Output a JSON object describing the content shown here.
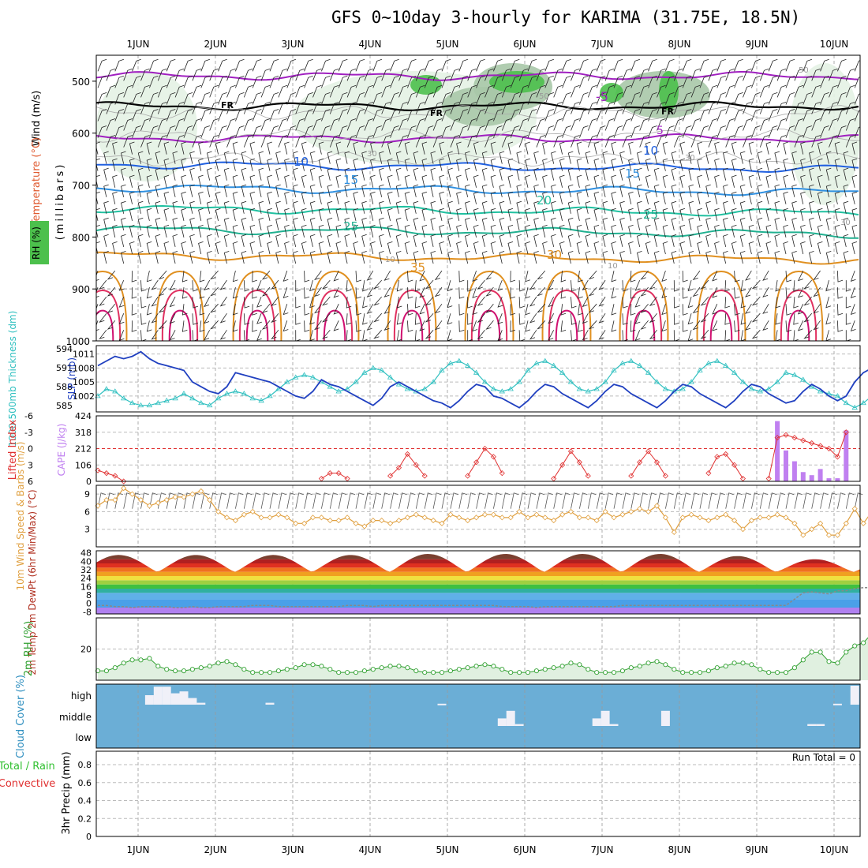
{
  "title": "GFS 0~10day 3-hourly for KARIMA (31.75E, 18.5N)",
  "days": [
    "1JUN",
    "2JUN",
    "3JUN",
    "4JUN",
    "5JUN",
    "6JUN",
    "7JUN",
    "8JUN",
    "9JUN",
    "10JUN"
  ],
  "colors": {
    "temp_cold": "#a020c0",
    "temp_mid": "#2060e0",
    "temp_warm": "#20c0a0",
    "temp_hot": "#e09020",
    "temp_vhot": "#e03060",
    "rh_light": "#e4f2e4",
    "rh_mid": "#a8c8a8",
    "rh_dark": "#4cc04c",
    "slp": "#2040c0",
    "thickness": "#30c0c0",
    "cape": "#c080f0",
    "lifted": "#e03030",
    "wind": "#e0a040",
    "cloud_bg": "#6baed6",
    "cloud_fill": "#f0f0f8",
    "rh2m": "#30a030",
    "precip_total": "#30c030",
    "precip_conv": "#e03030"
  },
  "chart_data": [
    {
      "type": "contour",
      "panel": "upper-air",
      "ylabel_parts": [
        "Wind (m/s)",
        "Temperature (°C)",
        "RH (%)",
        "(millibars)"
      ],
      "yticks": [
        500,
        600,
        700,
        800,
        900,
        1000
      ],
      "ylim": [
        450,
        1000
      ],
      "freezing_label": "FR",
      "temp_contour_labels": [
        "-5",
        "5",
        "10",
        "15",
        "20",
        "25",
        "30",
        "35"
      ],
      "rh_contour_labels": [
        "10",
        "30",
        "50"
      ]
    },
    {
      "type": "line",
      "panel": "slp-thickness",
      "ylabel_left": "1000-500mb Thickness (dm)",
      "ylabel_right": "SLP (mb)",
      "yticks_left": [
        585,
        588,
        591,
        594
      ],
      "yticks_right": [
        1002,
        1005,
        1008,
        1011
      ],
      "ylim_slp": [
        998.6,
        1012.8
      ],
      "series": [
        {
          "name": "SLP",
          "values": [
            1008.5,
            1009.5,
            1010.5,
            1010,
            1010.5,
            1011.5,
            1010,
            1009,
            1008.5,
            1008,
            1007.5,
            1005,
            1004,
            1003,
            1002.5,
            1004,
            1007,
            1006.5,
            1006,
            1005.5,
            1005,
            1004,
            1003,
            1002,
            1001.5,
            1003,
            1005.5,
            1004.5,
            1004,
            1003,
            1002,
            1001,
            1000,
            1001.5,
            1004,
            1005,
            1004,
            1003,
            1002,
            1001,
            1000.5,
            999.5,
            1001,
            1003,
            1004.5,
            1004,
            1002,
            1001.5,
            1000.5,
            999.5,
            1001,
            1003,
            1004.5,
            1004,
            1002.5,
            1001.5,
            1000.5,
            999.5,
            1001,
            1003,
            1004.5,
            1004,
            1002.5,
            1001.5,
            1000.5,
            999.5,
            1001,
            1003,
            1004.5,
            1004,
            1002.5,
            1001.5,
            1000.5,
            999.5,
            1001,
            1003,
            1004.5,
            1004,
            1002.5,
            1001.5,
            1000.5,
            1001,
            1003,
            1004.5,
            1003.5,
            1002,
            1001,
            1002,
            1005,
            1007,
            1008
          ]
        },
        {
          "name": "Thickness",
          "values": [
            1002,
            1003.5,
            1003,
            1001.5,
            1000.5,
            1000,
            1000,
            1000.5,
            1001,
            1001.5,
            1002.5,
            1001.5,
            1000.5,
            1000,
            1001.5,
            1002.5,
            1003,
            1002.5,
            1001.5,
            1001,
            1002,
            1003.5,
            1005,
            1006,
            1006.5,
            1006,
            1005,
            1004,
            1003,
            1003.5,
            1005,
            1007,
            1008,
            1007.5,
            1006,
            1004.5,
            1003.5,
            1003,
            1003.5,
            1005,
            1007.5,
            1009,
            1009.5,
            1008.5,
            1007,
            1005,
            1003.5,
            1003,
            1003.5,
            1005,
            1007.5,
            1009,
            1009.5,
            1008.5,
            1007,
            1005,
            1003.5,
            1003,
            1003.5,
            1005,
            1007.5,
            1009,
            1009.5,
            1008.5,
            1007,
            1005,
            1003.5,
            1003,
            1003.5,
            1005,
            1007.5,
            1009,
            1009.5,
            1008.5,
            1007,
            1005,
            1003.5,
            1003,
            1003.5,
            1005,
            1007,
            1006.5,
            1005.5,
            1004,
            1003,
            1002.5,
            1002,
            1000.5,
            999.5,
            1000.5,
            1002
          ]
        }
      ]
    },
    {
      "type": "bar",
      "panel": "cape-lifted",
      "ylabel_left": "Lifted Index",
      "ylabel_right": "CAPE (J/kg)",
      "yticks_left": [
        -6,
        -3,
        0,
        3,
        6
      ],
      "yticks_right": [
        0,
        106,
        212,
        318,
        424
      ],
      "cape_bars": [
        {
          "i": 79,
          "v": 390
        },
        {
          "i": 80,
          "v": 200
        },
        {
          "i": 81,
          "v": 130
        },
        {
          "i": 82,
          "v": 60
        },
        {
          "i": 83,
          "v": 40
        },
        {
          "i": 84,
          "v": 80
        },
        {
          "i": 85,
          "v": 20
        },
        {
          "i": 86,
          "v": 20
        },
        {
          "i": 87,
          "v": 330
        }
      ],
      "lifted_index": [
        {
          "i": 0,
          "v": 4
        },
        {
          "i": 1,
          "v": 4.5
        },
        {
          "i": 2,
          "v": 5
        },
        {
          "i": 3,
          "v": 6
        },
        {
          "i": 26,
          "v": 5.5
        },
        {
          "i": 27,
          "v": 4.5
        },
        {
          "i": 28,
          "v": 4.5
        },
        {
          "i": 29,
          "v": 5.5
        },
        {
          "i": 34,
          "v": 5
        },
        {
          "i": 35,
          "v": 3.5
        },
        {
          "i": 36,
          "v": 1
        },
        {
          "i": 37,
          "v": 3
        },
        {
          "i": 38,
          "v": 5
        },
        {
          "i": 43,
          "v": 5
        },
        {
          "i": 44,
          "v": 2.5
        },
        {
          "i": 45,
          "v": 0
        },
        {
          "i": 46,
          "v": 1.5
        },
        {
          "i": 47,
          "v": 4.5
        },
        {
          "i": 53,
          "v": 5.5
        },
        {
          "i": 54,
          "v": 3
        },
        {
          "i": 55,
          "v": 0.5
        },
        {
          "i": 56,
          "v": 2.5
        },
        {
          "i": 57,
          "v": 5
        },
        {
          "i": 62,
          "v": 5
        },
        {
          "i": 63,
          "v": 2.5
        },
        {
          "i": 64,
          "v": 0.5
        },
        {
          "i": 65,
          "v": 2.5
        },
        {
          "i": 66,
          "v": 5
        },
        {
          "i": 71,
          "v": 4.5
        },
        {
          "i": 72,
          "v": 1.5
        },
        {
          "i": 73,
          "v": 1
        },
        {
          "i": 74,
          "v": 3
        },
        {
          "i": 75,
          "v": 5.5
        },
        {
          "i": 78,
          "v": 5.5
        },
        {
          "i": 79,
          "v": -2
        },
        {
          "i": 80,
          "v": -2.5
        },
        {
          "i": 81,
          "v": -2
        },
        {
          "i": 82,
          "v": -1.5
        },
        {
          "i": 83,
          "v": -1
        },
        {
          "i": 84,
          "v": -0.5
        },
        {
          "i": 85,
          "v": 0
        },
        {
          "i": 86,
          "v": 1.5
        },
        {
          "i": 87,
          "v": -3
        }
      ]
    },
    {
      "type": "line",
      "panel": "wind10m",
      "ylabel": "10m Wind Speed & Barbs (m/s)",
      "yticks": [
        3,
        6,
        9
      ],
      "ylim": [
        0,
        10.5
      ],
      "values": [
        7,
        8,
        8,
        10,
        9,
        8,
        7,
        7.5,
        8,
        8.5,
        8.5,
        9,
        9.5,
        8,
        6,
        5,
        4.5,
        5.5,
        6,
        5,
        5,
        5.5,
        5,
        4,
        4,
        5,
        5,
        4.5,
        4.5,
        5,
        4,
        3.5,
        4.5,
        4.5,
        4,
        4.5,
        5,
        5.5,
        5,
        4.5,
        4,
        5.5,
        5,
        4.5,
        5,
        5.5,
        5.5,
        5,
        5,
        6,
        5,
        5.5,
        5,
        4.5,
        5.5,
        6,
        5,
        5,
        4.5,
        6,
        5,
        5.5,
        6,
        6.5,
        6,
        7,
        5,
        2.5,
        5,
        5.5,
        5,
        4.5,
        5,
        5.5,
        4.5,
        3,
        4.5,
        5,
        5,
        5.5,
        5,
        4,
        2,
        3,
        4,
        2,
        2,
        4,
        6.5,
        4,
        6,
        5,
        5.5,
        5,
        7,
        8
      ]
    },
    {
      "type": "area",
      "panel": "temp2m",
      "ylabel": "2m Temp 2m DewPt (6hr Min/Max) (°C)",
      "yticks": [
        -8,
        0,
        8,
        16,
        24,
        32,
        40,
        48
      ],
      "ylim": [
        -10,
        50
      ],
      "series": [
        {
          "name": "Temp",
          "daily_min": 30,
          "daily_max": [
            46,
            46,
            46,
            46,
            47,
            47,
            47,
            47,
            45,
            42
          ]
        },
        {
          "name": "DewPt",
          "values": [
            -2,
            -2,
            -3,
            -3,
            -4,
            -3,
            -3,
            -3,
            -3,
            -4,
            -4,
            -3,
            -4,
            -4,
            -3,
            -3,
            -3,
            -3,
            -2,
            -2,
            -2,
            -3,
            -3,
            -3,
            -3,
            -3,
            -3,
            -3,
            -3,
            -2,
            -2,
            -2,
            -3,
            -2,
            -2,
            -2,
            -2,
            -2,
            -2,
            -2,
            -2,
            -2,
            -2,
            -2,
            -2,
            -2,
            -2,
            -3,
            -3,
            -3,
            -3,
            -4,
            -3,
            -3,
            -3,
            -3,
            -3,
            -3,
            -3,
            -3,
            -3,
            -2,
            -2,
            -2,
            -2,
            -2,
            -2,
            -2,
            -2,
            -2,
            -2,
            -2,
            -2,
            -2,
            -2,
            -2,
            -2,
            -2,
            -2,
            -2,
            -2,
            4,
            10,
            11,
            10,
            9,
            12,
            12,
            14,
            15,
            15
          ]
        }
      ]
    },
    {
      "type": "area",
      "panel": "rh2m",
      "ylabel": "2m RH (%)",
      "yticks": [
        20
      ],
      "ylim": [
        0,
        40
      ],
      "values": [
        6,
        6,
        8,
        11,
        13,
        13,
        14,
        9,
        7,
        6,
        6,
        7,
        8,
        9,
        11,
        12,
        10,
        7,
        5,
        5,
        5,
        6,
        7,
        8,
        10,
        10,
        9,
        7,
        5,
        5,
        5,
        6,
        7,
        8,
        9,
        9,
        8,
        6,
        5,
        5,
        5,
        6,
        7,
        8,
        9,
        10,
        9,
        7,
        5,
        5,
        5,
        6,
        7,
        8,
        9,
        11,
        10,
        7,
        5,
        5,
        5,
        6,
        8,
        9,
        11,
        12,
        10,
        7,
        5,
        5,
        5,
        6,
        8,
        9,
        11,
        11,
        10,
        7,
        5,
        5,
        5,
        8,
        13,
        18,
        18,
        12,
        11,
        18,
        22,
        24,
        30,
        38,
        38,
        37,
        37
      ]
    },
    {
      "type": "bar",
      "panel": "cloud",
      "ylabel": "Cloud Cover (%)",
      "levels": [
        "high",
        "middle",
        "low"
      ],
      "high": [
        {
          "i": 6,
          "v": 50
        },
        {
          "i": 7,
          "v": 95
        },
        {
          "i": 8,
          "v": 95
        },
        {
          "i": 9,
          "v": 60
        },
        {
          "i": 10,
          "v": 70
        },
        {
          "i": 11,
          "v": 35
        },
        {
          "i": 12,
          "v": 10
        },
        {
          "i": 20,
          "v": 10
        },
        {
          "i": 40,
          "v": 5
        },
        {
          "i": 86,
          "v": 5
        },
        {
          "i": 88,
          "v": 100
        }
      ],
      "middle": [
        {
          "i": 47,
          "v": 40
        },
        {
          "i": 48,
          "v": 80
        },
        {
          "i": 49,
          "v": 10
        },
        {
          "i": 58,
          "v": 40
        },
        {
          "i": 59,
          "v": 80
        },
        {
          "i": 60,
          "v": 10
        },
        {
          "i": 66,
          "v": 80
        },
        {
          "i": 83,
          "v": 10
        },
        {
          "i": 84,
          "v": 10
        }
      ],
      "low": []
    },
    {
      "type": "bar",
      "panel": "precip",
      "ylabel_parts": [
        "Total / Rain",
        "Convective",
        "3hr Precip (mm)"
      ],
      "yticks": [
        "0",
        "0.2",
        "0.4",
        "0.6",
        "0.8"
      ],
      "ylim": [
        0,
        0.95
      ],
      "values": [],
      "annotation": "Run Total = 0"
    }
  ]
}
